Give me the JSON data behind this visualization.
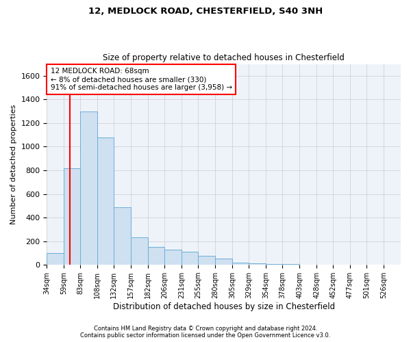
{
  "title1": "12, MEDLOCK ROAD, CHESTERFIELD, S40 3NH",
  "title2": "Size of property relative to detached houses in Chesterfield",
  "xlabel": "Distribution of detached houses by size in Chesterfield",
  "ylabel": "Number of detached properties",
  "bin_labels": [
    "34sqm",
    "59sqm",
    "83sqm",
    "108sqm",
    "132sqm",
    "157sqm",
    "182sqm",
    "206sqm",
    "231sqm",
    "255sqm",
    "280sqm",
    "305sqm",
    "329sqm",
    "354sqm",
    "378sqm",
    "403sqm",
    "428sqm",
    "452sqm",
    "477sqm",
    "501sqm",
    "526sqm"
  ],
  "bin_edges": [
    34,
    59,
    83,
    108,
    132,
    157,
    182,
    206,
    231,
    255,
    280,
    305,
    329,
    354,
    378,
    403,
    428,
    452,
    477,
    501,
    526
  ],
  "bar_values": [
    100,
    820,
    1300,
    1080,
    490,
    230,
    150,
    130,
    110,
    75,
    55,
    20,
    10,
    5,
    5,
    3,
    2,
    1,
    1,
    1,
    1
  ],
  "bar_color": "#cfe0f0",
  "bar_edgecolor": "#6baed6",
  "grid_color": "#cccccc",
  "bg_color": "#eef3fa",
  "vline_x": 68,
  "vline_color": "red",
  "annotation_text": "12 MEDLOCK ROAD: 68sqm\n← 8% of detached houses are smaller (330)\n91% of semi-detached houses are larger (3,958) →",
  "annotation_box_color": "white",
  "annotation_box_edgecolor": "red",
  "footer1": "Contains HM Land Registry data © Crown copyright and database right 2024.",
  "footer2": "Contains public sector information licensed under the Open Government Licence v3.0.",
  "ylim": [
    0,
    1700
  ],
  "yticks": [
    0,
    200,
    400,
    600,
    800,
    1000,
    1200,
    1400,
    1600
  ]
}
